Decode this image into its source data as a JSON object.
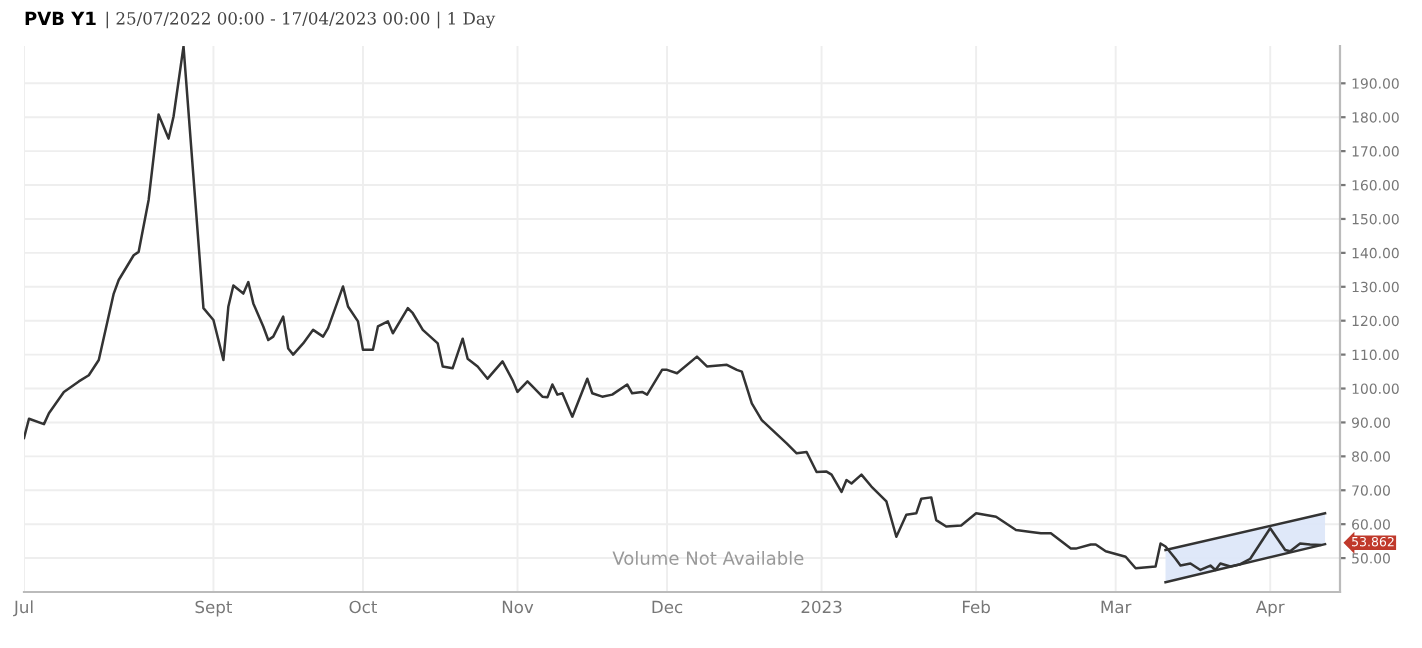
{
  "chart_data": {
    "type": "line",
    "title": "PVB Y1",
    "subtitle": "| 25/07/2022 00:00 - 17/04/2023 00:00 | 1 Day",
    "series": [
      {
        "color": "#333333",
        "x": [
          "2022-07-25",
          "2022-07-26",
          "2022-07-29",
          "2022-07-30",
          "2022-08-02",
          "2022-08-05",
          "2022-08-07",
          "2022-08-09",
          "2022-08-12",
          "2022-08-13",
          "2022-08-16",
          "2022-08-17",
          "2022-08-19",
          "2022-08-21",
          "2022-08-23",
          "2022-08-24",
          "2022-08-26",
          "2022-08-30",
          "2022-09-01",
          "2022-09-03",
          "2022-09-04",
          "2022-09-05",
          "2022-09-07",
          "2022-09-08",
          "2022-09-09",
          "2022-09-11",
          "2022-09-12",
          "2022-09-13",
          "2022-09-15",
          "2022-09-16",
          "2022-09-17",
          "2022-09-19",
          "2022-09-21",
          "2022-09-23",
          "2022-09-24",
          "2022-09-27",
          "2022-09-28",
          "2022-09-30",
          "2022-10-01",
          "2022-10-03",
          "2022-10-04",
          "2022-10-06",
          "2022-10-07",
          "2022-10-10",
          "2022-10-11",
          "2022-10-13",
          "2022-10-16",
          "2022-10-17",
          "2022-10-19",
          "2022-10-21",
          "2022-10-22",
          "2022-10-24",
          "2022-10-26",
          "2022-10-29",
          "2022-10-31",
          "2022-11-01",
          "2022-11-03",
          "2022-11-04",
          "2022-11-06",
          "2022-11-07",
          "2022-11-08",
          "2022-11-09",
          "2022-11-10",
          "2022-11-12",
          "2022-11-15",
          "2022-11-16",
          "2022-11-18",
          "2022-11-20",
          "2022-11-23",
          "2022-11-24",
          "2022-11-26",
          "2022-11-27",
          "2022-11-30",
          "2022-12-01",
          "2022-12-03",
          "2022-12-07",
          "2022-12-09",
          "2022-12-13",
          "2022-12-15",
          "2022-12-16",
          "2022-12-18",
          "2022-12-20",
          "2022-12-25",
          "2022-12-27",
          "2022-12-29",
          "2022-12-31",
          "2023-01-02",
          "2023-01-03",
          "2023-01-05",
          "2023-01-06",
          "2023-01-07",
          "2023-01-09",
          "2023-01-11",
          "2023-01-14",
          "2023-01-16",
          "2023-01-18",
          "2023-01-20",
          "2023-01-21",
          "2023-01-23",
          "2023-01-24",
          "2023-01-26",
          "2023-01-29",
          "2023-02-01",
          "2023-02-05",
          "2023-02-09",
          "2023-02-12",
          "2023-02-14",
          "2023-02-16",
          "2023-02-20",
          "2023-02-21",
          "2023-02-24",
          "2023-02-25",
          "2023-02-27",
          "2023-03-03",
          "2023-03-05",
          "2023-03-09",
          "2023-03-10",
          "2023-03-11",
          "2023-03-13",
          "2023-03-14",
          "2023-03-16",
          "2023-03-18",
          "2023-03-20",
          "2023-03-21",
          "2023-03-22",
          "2023-03-24",
          "2023-03-26",
          "2023-03-28",
          "2023-04-01",
          "2023-04-04",
          "2023-04-05",
          "2023-04-07",
          "2023-04-09",
          "2023-04-11"
        ],
        "values": [
          85.4,
          91.1,
          89.5,
          92.7,
          99,
          102.1,
          103.9,
          108.4,
          128,
          132,
          139.3,
          140.3,
          155.6,
          180.8,
          173.7,
          180.2,
          200.9,
          123.7,
          120.2,
          108.4,
          124.2,
          130.4,
          128,
          131.4,
          125.1,
          118.3,
          114.3,
          115.3,
          121.2,
          111.8,
          110,
          113.3,
          117.3,
          115.3,
          117.8,
          130.1,
          124.2,
          119.8,
          111.4,
          111.4,
          118.3,
          119.8,
          116.3,
          123.7,
          122.2,
          117.3,
          113.3,
          106.5,
          106,
          114.7,
          108.8,
          106.5,
          102.9,
          108,
          102.5,
          99,
          102.1,
          100.6,
          97.6,
          97.4,
          101.2,
          98.2,
          98.6,
          91.7,
          102.9,
          98.6,
          97.6,
          98.2,
          101.2,
          98.6,
          99,
          98.2,
          105.5,
          105.5,
          104.5,
          109.4,
          106.5,
          107,
          105.5,
          105,
          95.6,
          90.7,
          83.8,
          80.9,
          81.3,
          75.4,
          75.5,
          74.6,
          69.5,
          73,
          72,
          74.6,
          71.1,
          66.7,
          56.3,
          62.8,
          63.2,
          67.5,
          67.9,
          61.2,
          59.3,
          59.6,
          63.2,
          62.2,
          58.3,
          57.7,
          57.3,
          57.3,
          52.8,
          52.8,
          54,
          54,
          52,
          50.4,
          47,
          47.5,
          54.3,
          53.4,
          49.8,
          47.8,
          48.4,
          46.5,
          47.8,
          46.5,
          48.4,
          47.5,
          48.2,
          49.8,
          58.8,
          52.4,
          52,
          54.3,
          54,
          53.9
        ]
      },
      {
        "color": "#dce6f8",
        "x": [
          "2023-03-11",
          "2023-04-12"
        ],
        "values": [
          null,
          null
        ],
        "lower": [
          42.9,
          54.1
        ],
        "upper": [
          52.4,
          63.2
        ]
      },
      {
        "color": "#333333",
        "x": [
          "2023-03-11",
          "2023-04-12"
        ],
        "values": [
          52.4,
          63.2
        ]
      },
      {
        "color": "#333333",
        "x": [
          "2023-03-11",
          "2023-04-12"
        ],
        "values": [
          42.9,
          54.1
        ]
      }
    ],
    "xlim": [
      "2022-07-25",
      "2023-04-15"
    ],
    "xticks": [
      {
        "value": "2022-07-25",
        "label": "Jul"
      },
      {
        "value": "2022-09-01",
        "label": "Sept"
      },
      {
        "value": "2022-10-01",
        "label": "Oct"
      },
      {
        "value": "2022-11-01",
        "label": "Nov"
      },
      {
        "value": "2022-12-01",
        "label": "Dec"
      },
      {
        "value": "2023-01-01",
        "label": "2023"
      },
      {
        "value": "2023-02-01",
        "label": "Feb"
      },
      {
        "value": "2023-03-01",
        "label": "Mar"
      },
      {
        "value": "2023-04-01",
        "label": "Apr"
      }
    ],
    "ylim": [
      40,
      201
    ],
    "yticks": [
      {
        "value": 50,
        "label": "50.00"
      },
      {
        "value": 60,
        "label": "60.00"
      },
      {
        "value": 70,
        "label": "70.00"
      },
      {
        "value": 80,
        "label": "80.00"
      },
      {
        "value": 90,
        "label": "90.00"
      },
      {
        "value": 100,
        "label": "100.00"
      },
      {
        "value": 110,
        "label": "110.00"
      },
      {
        "value": 120,
        "label": "120.00"
      },
      {
        "value": 130,
        "label": "130.00"
      },
      {
        "value": 140,
        "label": "140.00"
      },
      {
        "value": 150,
        "label": "150.00"
      },
      {
        "value": 160,
        "label": "160.00"
      },
      {
        "value": 170,
        "label": "170.00"
      },
      {
        "value": 180,
        "label": "180.00"
      },
      {
        "value": 190,
        "label": "190.00"
      }
    ],
    "grid": true,
    "annotations": [
      "Volume Not Available",
      {
        "text": "53.862",
        "y": 53.862
      }
    ]
  }
}
